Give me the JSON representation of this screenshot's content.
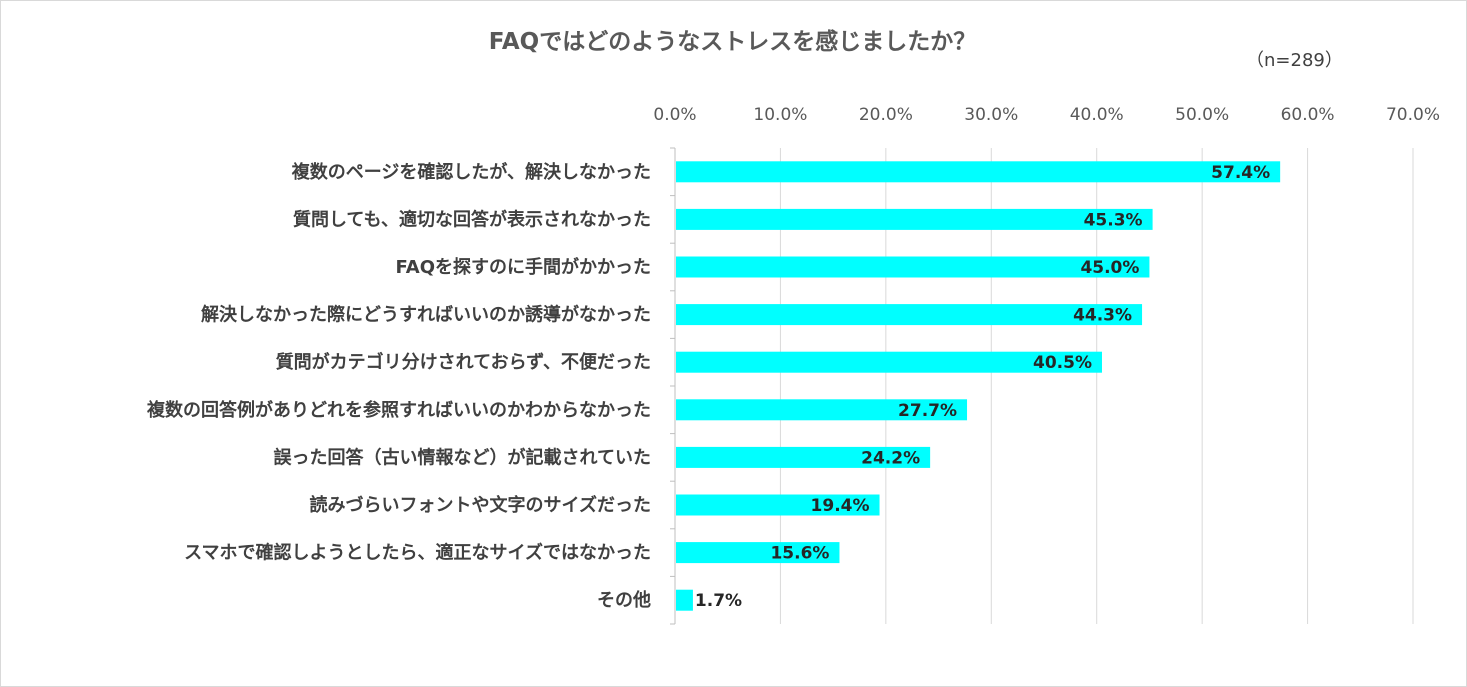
{
  "chart_data": {
    "type": "bar",
    "orientation": "horizontal",
    "title": "FAQではどのようなストレスを感じましたか？",
    "note": "（n=289）",
    "categories": [
      "複数のページを確認したが、解決しなかった",
      "質問しても、適切な回答が表示されなかった",
      "FAQを探すのに手間がかかった",
      "解決しなかった際にどうすればいいのか誘導がなかった",
      "質問がカテゴリ分けされておらず、不便だった",
      "複数の回答例がありどれを参照すればいいのかわからなかった",
      "誤った回答（古い情報など）が記載されていた",
      "読みづらいフォントや文字のサイズだった",
      "スマホで確認しようとしたら、適正なサイズではなかった",
      "その他"
    ],
    "values": [
      57.4,
      45.3,
      45.0,
      44.3,
      40.5,
      27.7,
      24.2,
      19.4,
      15.6,
      1.7
    ],
    "data_labels": [
      "57.4%",
      "45.3%",
      "45.0%",
      "44.3%",
      "40.5%",
      "27.7%",
      "24.2%",
      "19.4%",
      "15.6%",
      "1.7%"
    ],
    "x_ticks": [
      "0.0%",
      "10.0%",
      "20.0%",
      "30.0%",
      "40.0%",
      "50.0%",
      "60.0%",
      "70.0%"
    ],
    "xlim": [
      0,
      70
    ],
    "axis_position": "top",
    "grid": true,
    "legend": "none",
    "colors": {
      "bar": "#00FFFF",
      "grid": "#d9d9d9",
      "text": "#404040"
    }
  }
}
